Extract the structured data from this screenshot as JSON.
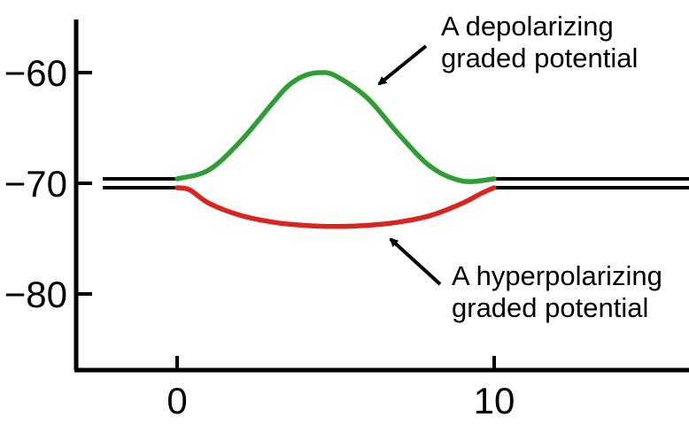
{
  "chart_data": {
    "type": "line",
    "title": "",
    "xlabel": "",
    "ylabel": "",
    "xlim": [
      -3.2,
      16.5
    ],
    "ylim": [
      -87,
      -55
    ],
    "x_ticks": [
      {
        "value": 0,
        "label": "0"
      },
      {
        "value": 10,
        "label": "10"
      }
    ],
    "y_ticks": [
      {
        "value": -60,
        "label": "−60"
      },
      {
        "value": -70,
        "label": "−70"
      },
      {
        "value": -80,
        "label": "−80"
      }
    ],
    "grid": false,
    "resting_potential": -70,
    "baseline_color": "#000000",
    "series": [
      {
        "color": "#2e9e34",
        "x": [
          0,
          1,
          2,
          3,
          3.5,
          4,
          4.5,
          5,
          6,
          7,
          8,
          9,
          10
        ],
        "y": [
          -70,
          -68.8,
          -66.2,
          -62.8,
          -61.2,
          -60.3,
          -60,
          -60.3,
          -62.3,
          -65.6,
          -68.5,
          -69.8,
          -70
        ]
      },
      {
        "color": "#d9251d",
        "x": [
          0,
          0.4,
          1,
          2,
          3,
          4,
          5,
          6,
          7,
          8,
          9,
          9.6,
          10
        ],
        "y": [
          -70,
          -70.6,
          -71.8,
          -72.9,
          -73.5,
          -73.8,
          -73.9,
          -73.8,
          -73.5,
          -72.9,
          -71.8,
          -70.9,
          -70
        ]
      }
    ],
    "annotations": [
      {
        "lines": [
          "A depolarizing",
          "graded potential"
        ]
      },
      {
        "lines": [
          "A hyperpolarizing",
          "graded potential"
        ]
      }
    ]
  }
}
